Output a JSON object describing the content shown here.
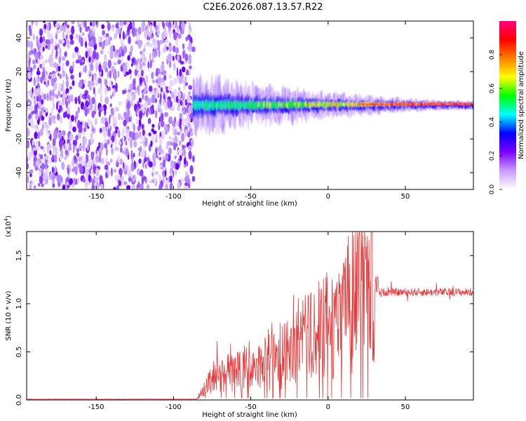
{
  "title": "C2E6.2026.087.13.57.R22",
  "chart_data": [
    {
      "type": "heatmap",
      "name": "spectrogram",
      "xlabel": "Height of straight line (km)",
      "ylabel": "Frequency (Hz)",
      "xlim": [
        -195,
        94
      ],
      "ylim": [
        -50,
        50
      ],
      "xticks": [
        -150,
        -100,
        -50,
        0,
        50
      ],
      "xtick_labels": [
        "-150",
        "-100",
        "-50",
        "0",
        "50"
      ],
      "yticks": [
        40,
        20,
        0,
        -20,
        -40
      ],
      "ytick_labels": [
        "40",
        "20",
        "0",
        "-20",
        "-40"
      ],
      "noise_region_x": [
        -195,
        -87
      ],
      "signal_region_x": [
        -87,
        94
      ],
      "colorbar": {
        "label": "Normalized spectral amplitude",
        "range": [
          0.0,
          1.0
        ],
        "ticks": [
          0.0,
          0.2,
          0.4,
          0.6,
          0.8
        ],
        "tick_labels": [
          "0.0",
          "0.2",
          "0.4",
          "0.6",
          "0.8"
        ],
        "colors": [
          "#ffffff",
          "#c99cff",
          "#7d00ff",
          "#0000ff",
          "#00ffff",
          "#00ff00",
          "#ffff00",
          "#ff8000",
          "#ff0000",
          "#ff0080"
        ]
      }
    },
    {
      "type": "line",
      "name": "snr",
      "xlabel": "Height of straight line (km)",
      "ylabel": "SNR (10 * v/v)",
      "scale_label": "(x10",
      "scale_exp": "4",
      "scale_close": ")",
      "xlim": [
        -195,
        94
      ],
      "ylim": [
        0,
        1.75
      ],
      "xticks": [
        -150,
        -100,
        -50,
        0,
        50
      ],
      "xtick_labels": [
        "-150",
        "-100",
        "-50",
        "0",
        "50"
      ],
      "yticks": [
        0.0,
        0.5,
        1.0,
        1.5
      ],
      "ytick_labels": [
        "0.0",
        "0.5",
        "1.0",
        "1.5"
      ],
      "color": "#e8393a",
      "series_description": "flat near 0.01 from -195 to -85 km; noisy rise from -85 to 30 km with peaks near 1.6-1.7; plateau about 1.1 from 32 to 94 km",
      "key_points": [
        [
          -195,
          0.01
        ],
        [
          -85,
          0.01
        ],
        [
          -75,
          0.3
        ],
        [
          -50,
          0.4
        ],
        [
          -30,
          0.55
        ],
        [
          -10,
          0.85
        ],
        [
          10,
          1.1
        ],
        [
          20,
          1.6
        ],
        [
          28,
          1.75
        ],
        [
          32,
          1.12
        ],
        [
          50,
          1.12
        ],
        [
          94,
          1.12
        ]
      ]
    }
  ]
}
